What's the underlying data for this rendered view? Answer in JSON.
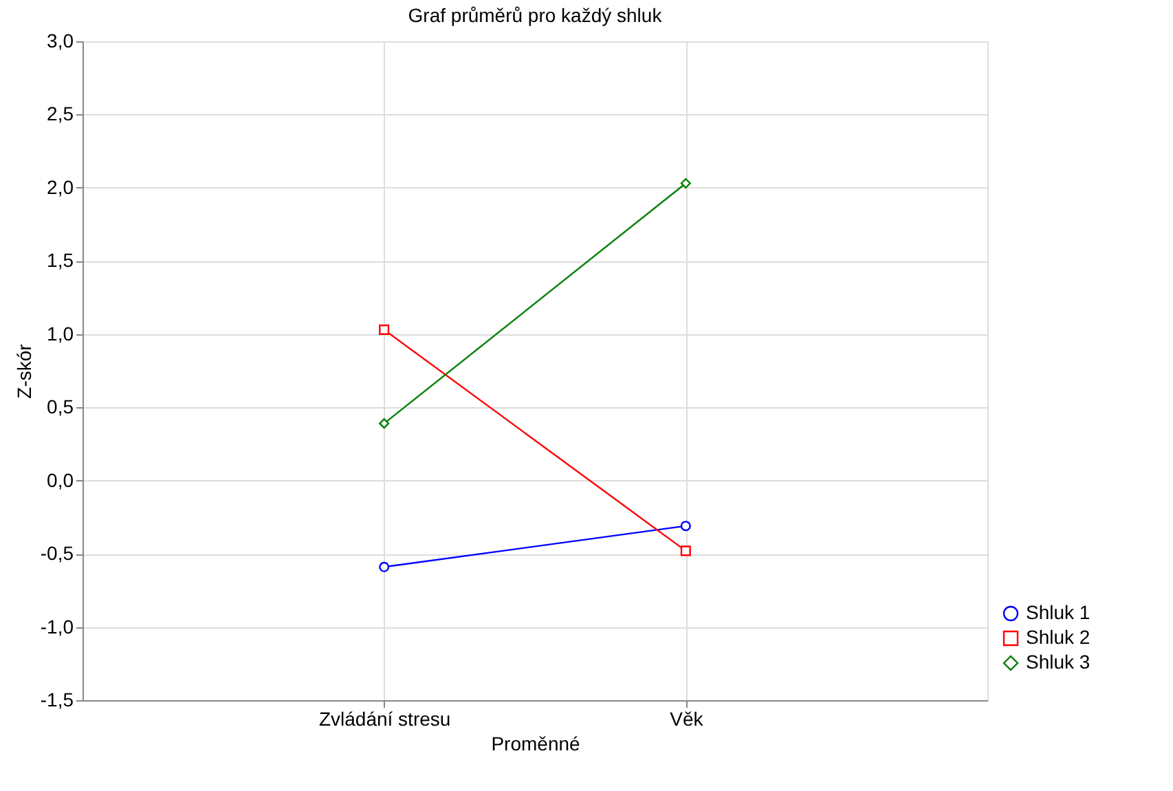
{
  "chart_data": {
    "type": "line",
    "title": "Graf průměrů pro každý shluk",
    "xlabel": "Proměnné",
    "ylabel": "Z-skór",
    "categories": [
      "Zvládání stresu",
      "Věk"
    ],
    "series": [
      {
        "name": "Shluk 1",
        "color": "#0000ff",
        "values": [
          -0.59,
          -0.31
        ],
        "marker": "circle"
      },
      {
        "name": "Shluk 2",
        "color": "#ff0000",
        "values": [
          1.03,
          -0.48
        ],
        "marker": "square"
      },
      {
        "name": "Shluk 3",
        "color": "#008000",
        "values": [
          0.39,
          2.03
        ],
        "marker": "diamond"
      }
    ],
    "ylim": [
      -1.5,
      3.0
    ],
    "yticks": [
      {
        "value": -1.5,
        "label": "-1,5"
      },
      {
        "value": -1.0,
        "label": "-1,0"
      },
      {
        "value": -0.5,
        "label": "-0,5"
      },
      {
        "value": 0,
        "label": "0,0"
      },
      {
        "value": 0.5,
        "label": "0,5"
      },
      {
        "value": 1.0,
        "label": "1,0"
      },
      {
        "value": 1.5,
        "label": "1,5"
      },
      {
        "value": 2.0,
        "label": "2,0"
      },
      {
        "value": 2.5,
        "label": "2,5"
      },
      {
        "value": 3.0,
        "label": "3,0"
      }
    ],
    "grid": true,
    "legend": "bottom right",
    "line_style": "solid"
  }
}
